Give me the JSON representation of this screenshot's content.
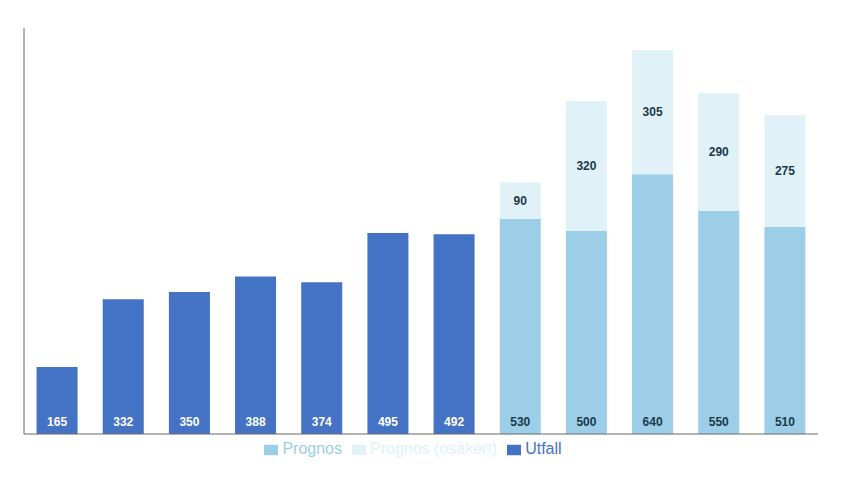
{
  "chart_data": {
    "type": "bar",
    "stacked": true,
    "categories": [
      null,
      null,
      null,
      null,
      null,
      null,
      null,
      null,
      null,
      null,
      null,
      null
    ],
    "series": [
      {
        "name": "Utfall",
        "color": "#4472C4",
        "values": [
          165,
          332,
          350,
          388,
          374,
          495,
          492,
          null,
          null,
          null,
          null,
          null
        ]
      },
      {
        "name": "Prognos",
        "color": "#9DCEE8",
        "values": [
          null,
          null,
          null,
          null,
          null,
          null,
          null,
          530,
          500,
          640,
          550,
          510
        ]
      },
      {
        "name": "Prognos (osäkert)",
        "color": "#E0F2F8",
        "values": [
          null,
          null,
          null,
          null,
          null,
          null,
          null,
          90,
          320,
          305,
          290,
          275
        ]
      }
    ],
    "ylim": [
      0,
      1000
    ],
    "grid": false,
    "legend": "bottom",
    "data_labels": true,
    "tick_labels": false
  }
}
